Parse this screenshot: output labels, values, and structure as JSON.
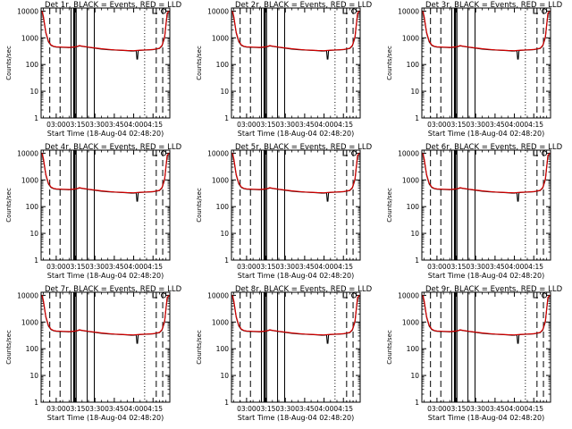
{
  "figure": {
    "x_axis_label": "Start Time (18-Aug-04 02:48:20)",
    "y_axis_label": "Counts/sec"
  },
  "chart_data": [
    {
      "type": "line",
      "title": "Det 1r, BLACK = Events, RED = LLD"
    },
    {
      "type": "line",
      "title": "Det 2r, BLACK = Events, RED = LLD"
    },
    {
      "type": "line",
      "title": "Det 3r, BLACK = Events, RED = LLD"
    },
    {
      "type": "line",
      "title": "Det 4r, BLACK = Events, RED = LLD"
    },
    {
      "type": "line",
      "title": "Det 5r, BLACK = Events, RED = LLD"
    },
    {
      "type": "line",
      "title": "Det 6r, BLACK = Events, RED = LLD"
    },
    {
      "type": "line",
      "title": "Det 7r, BLACK = Events, RED = LLD"
    },
    {
      "type": "line",
      "title": "Det 8r, BLACK = Events, RED = LLD"
    },
    {
      "type": "line",
      "title": "Det 9r, BLACK = Events, RED = LLD"
    }
  ],
  "shared": {
    "x_ticks": [
      "03:00",
      "03:15",
      "03:30",
      "03:45",
      "04:00",
      "04:15"
    ],
    "x_tick_minutes": [
      180,
      195,
      210,
      225,
      240,
      255
    ],
    "xlim_minutes": [
      168.3,
      268
    ],
    "y_scale": "log",
    "ylim": [
      1,
      13000
    ],
    "y_ticks": [
      1,
      10,
      100,
      1000,
      10000
    ],
    "y_tick_labels": [
      "1",
      "10",
      "100",
      "1000",
      "10000"
    ],
    "events_series": {
      "name": "Events",
      "color": "#000000",
      "x": [
        169,
        170,
        172,
        174,
        176,
        178,
        180,
        185,
        190,
        195,
        198,
        200,
        205,
        210,
        215,
        220,
        225,
        230,
        235,
        238,
        240,
        242,
        242.5,
        243,
        243.5,
        245,
        250,
        255,
        260,
        262,
        264,
        265,
        266,
        267.5
      ],
      "y": [
        10000,
        6000,
        1500,
        700,
        520,
        470,
        450,
        440,
        430,
        450,
        500,
        480,
        440,
        410,
        380,
        360,
        350,
        340,
        330,
        320,
        320,
        330,
        160,
        160,
        330,
        340,
        350,
        360,
        400,
        500,
        1000,
        3000,
        8000,
        10000
      ]
    },
    "lld_series": {
      "name": "LLD",
      "color": "#d40000",
      "x": [
        169,
        170,
        172,
        174,
        176,
        178,
        180,
        185,
        190,
        195,
        198,
        200,
        205,
        210,
        215,
        220,
        225,
        230,
        235,
        240,
        245,
        250,
        255,
        260,
        262,
        264,
        265,
        266,
        267.5
      ],
      "y": [
        10000,
        6500,
        1600,
        750,
        540,
        480,
        460,
        450,
        440,
        460,
        510,
        490,
        450,
        420,
        390,
        370,
        355,
        345,
        335,
        330,
        345,
        355,
        365,
        410,
        520,
        1100,
        3200,
        8500,
        10000
      ]
    },
    "solid_vertical_lines_minutes": [
      191.5,
      195.5,
      204,
      209.5
    ],
    "thick_vertical_lines_minutes": [
      194
    ],
    "dashed_vertical_lines_minutes": [
      175,
      183,
      257.5,
      262.5
    ],
    "dotted_vertical_lines_minutes": [
      248.5
    ]
  }
}
